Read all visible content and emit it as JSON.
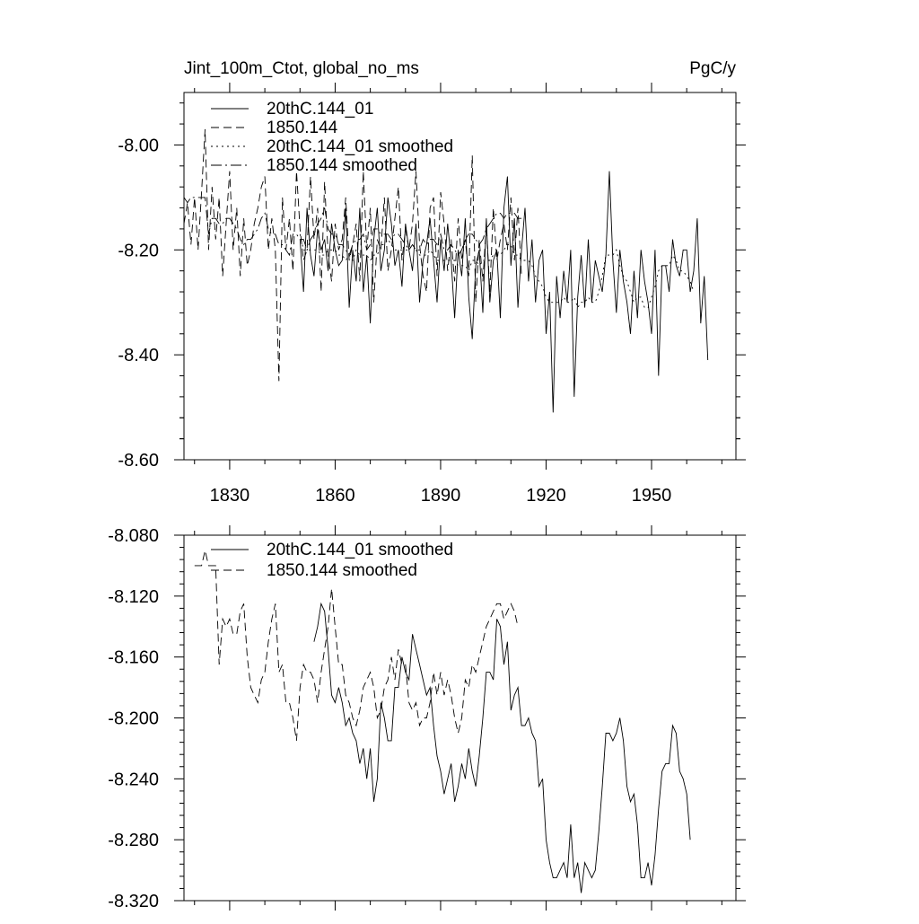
{
  "colors": {
    "line": "#000000",
    "background": "#ffffff"
  },
  "chart_data": [
    {
      "type": "line",
      "title_left": "Jint_100m_Ctot, global_no_ms",
      "title_right": "PgC/y",
      "xlim": [
        1817,
        1974
      ],
      "ylim": [
        -8.6,
        -7.9
      ],
      "x_ticks": [
        1830,
        1860,
        1890,
        1920,
        1950
      ],
      "x_tick_labels": [
        "1830",
        "1860",
        "1890",
        "1920",
        "1950"
      ],
      "y_ticks": [
        -8.0,
        -8.2,
        -8.4,
        -8.6
      ],
      "y_tick_labels": [
        "-8.00",
        "-8.20",
        "-8.40",
        "-8.60"
      ],
      "legend_position": "top-left",
      "series": [
        {
          "name": "20thC.144_01",
          "style": "solid",
          "x_start": 1850,
          "values": [
            -8.18,
            -8.28,
            -8.12,
            -8.21,
            -8.25,
            -8.16,
            -8.2,
            -8.18,
            -8.24,
            -8.15,
            -8.2,
            -8.23,
            -8.22,
            -8.12,
            -8.31,
            -8.2,
            -8.26,
            -8.12,
            -8.28,
            -8.21,
            -8.34,
            -8.18,
            -8.12,
            -8.24,
            -8.2,
            -8.1,
            -8.15,
            -8.23,
            -8.2,
            -8.27,
            -8.15,
            -8.2,
            -8.24,
            -8.15,
            -8.3,
            -8.22,
            -8.19,
            -8.14,
            -8.22,
            -8.3,
            -8.18,
            -8.24,
            -8.15,
            -8.22,
            -8.33,
            -8.2,
            -8.25,
            -8.14,
            -8.29,
            -8.37,
            -8.23,
            -8.2,
            -8.32,
            -8.14,
            -8.3,
            -8.22,
            -8.2,
            -8.33,
            -8.12,
            -8.06,
            -8.23,
            -8.14,
            -8.31,
            -8.2,
            -8.12,
            -8.26,
            -8.18,
            -8.3,
            -8.22,
            -8.2,
            -8.36,
            -8.28,
            -8.51,
            -8.25,
            -8.33,
            -8.24,
            -8.3,
            -8.2,
            -8.48,
            -8.29,
            -8.21,
            -8.31,
            -8.18,
            -8.3,
            -8.22,
            -8.25,
            -8.28,
            -8.21,
            -8.05,
            -8.22,
            -8.32,
            -8.2,
            -8.26,
            -8.3,
            -8.36,
            -8.24,
            -8.33,
            -8.2,
            -8.26,
            -8.3,
            -8.36,
            -8.2,
            -8.44,
            -8.23,
            -8.23,
            -8.28,
            -8.18,
            -8.23,
            -8.25,
            -8.2,
            -8.2,
            -8.28,
            -8.24,
            -8.14,
            -8.34,
            -8.25,
            -8.41
          ]
        },
        {
          "name": "1850.144",
          "style": "dashed",
          "x_start": 1817,
          "values": [
            -8.15,
            -8.11,
            -8.19,
            -8.1,
            -8.2,
            -8.09,
            -7.97,
            -8.2,
            -8.08,
            -8.18,
            -8.1,
            -8.25,
            -8.15,
            -8.05,
            -8.2,
            -8.12,
            -8.25,
            -8.14,
            -8.23,
            -8.2,
            -8.15,
            -8.12,
            -8.08,
            -8.06,
            -8.2,
            -8.14,
            -8.2,
            -8.45,
            -8.1,
            -8.2,
            -8.14,
            -8.24,
            -8.05,
            -8.16,
            -8.22,
            -8.2,
            -8.06,
            -8.18,
            -8.12,
            -8.28,
            -8.07,
            -8.21,
            -8.26,
            -8.15,
            -8.2,
            -8.18,
            -8.1,
            -8.22,
            -8.19,
            -8.15,
            -8.26,
            -8.05,
            -8.2,
            -8.12,
            -8.3,
            -8.18,
            -8.2,
            -8.1,
            -8.24,
            -8.2,
            -8.14,
            -8.08,
            -8.22,
            -8.16,
            -8.2,
            -8.15,
            -8.05,
            -8.19,
            -8.25,
            -8.28,
            -8.12,
            -8.1,
            -8.25,
            -8.09,
            -8.15,
            -8.24,
            -8.18,
            -8.26,
            -8.14,
            -8.22,
            -8.18,
            -8.25,
            -8.02,
            -8.3,
            -8.18,
            -8.26,
            -8.15,
            -8.28,
            -8.12,
            -8.22,
            -8.18,
            -8.15,
            -8.2,
            -8.1,
            -8.22,
            -8.12,
            -8.25
          ]
        },
        {
          "name": "20thC.144_01 smoothed",
          "style": "dotted",
          "x_start": 1850,
          "values": [
            -8.17,
            -8.2,
            -8.2,
            -8.2,
            -8.2,
            -8.2,
            -8.21,
            -8.21,
            -8.2,
            -8.2,
            -8.2,
            -8.21,
            -8.21,
            -8.22,
            -8.21,
            -8.22,
            -8.2,
            -8.21,
            -8.21,
            -8.21,
            -8.22,
            -8.21,
            -8.21,
            -8.19,
            -8.19,
            -8.18,
            -8.19,
            -8.2,
            -8.2,
            -8.2,
            -8.2,
            -8.2,
            -8.19,
            -8.2,
            -8.21,
            -8.21,
            -8.21,
            -8.2,
            -8.21,
            -8.22,
            -8.22,
            -8.22,
            -8.22,
            -8.22,
            -8.22,
            -8.23,
            -8.23,
            -8.23,
            -8.24,
            -8.22,
            -8.22,
            -8.23,
            -8.22,
            -8.22,
            -8.22,
            -8.21,
            -8.21,
            -8.21,
            -8.2,
            -8.19,
            -8.19,
            -8.21,
            -8.21,
            -8.22,
            -8.22,
            -8.22,
            -8.23,
            -8.25,
            -8.26,
            -8.27,
            -8.29,
            -8.3,
            -8.3,
            -8.3,
            -8.3,
            -8.29,
            -8.3,
            -8.3,
            -8.29,
            -8.31,
            -8.3,
            -8.3,
            -8.29,
            -8.3,
            -8.3,
            -8.28,
            -8.25,
            -8.21,
            -8.21,
            -8.21,
            -8.2,
            -8.23,
            -8.25,
            -8.26,
            -8.28,
            -8.3,
            -8.29,
            -8.29,
            -8.31,
            -8.31,
            -8.29,
            -8.27,
            -8.24,
            -8.23,
            -8.23,
            -8.23,
            -8.21,
            -8.22,
            -8.24,
            -8.24,
            -8.25,
            -8.26,
            -8.28
          ]
        },
        {
          "name": "1850.144 smoothed",
          "style": "dashdot",
          "x_start": 1817,
          "values": [
            -8.1,
            -8.11,
            -8.1,
            -8.1,
            -8.1,
            -8.1,
            -8.1,
            -8.17,
            -8.14,
            -8.14,
            -8.15,
            -8.15,
            -8.14,
            -8.14,
            -8.15,
            -8.16,
            -8.18,
            -8.19,
            -8.18,
            -8.18,
            -8.17,
            -8.16,
            -8.14,
            -8.13,
            -8.16,
            -8.17,
            -8.17,
            -8.19,
            -8.19,
            -8.2,
            -8.21,
            -8.17,
            -8.17,
            -8.18,
            -8.18,
            -8.2,
            -8.18,
            -8.17,
            -8.15,
            -8.14,
            -8.12,
            -8.16,
            -8.17,
            -8.17,
            -8.19,
            -8.19,
            -8.2,
            -8.21,
            -8.19,
            -8.18,
            -8.18,
            -8.17,
            -8.2,
            -8.19,
            -8.16,
            -8.16,
            -8.17,
            -8.17,
            -8.17,
            -8.18,
            -8.17,
            -8.17,
            -8.18,
            -8.19,
            -8.2,
            -8.19,
            -8.2,
            -8.2,
            -8.18,
            -8.19,
            -8.18,
            -8.18,
            -8.19,
            -8.17,
            -8.2,
            -8.2,
            -8.19,
            -8.2,
            -8.21,
            -8.2,
            -8.18,
            -8.17,
            -8.17,
            -8.18,
            -8.19,
            -8.18,
            -8.16,
            -8.15,
            -8.14,
            -8.13,
            -8.13,
            -8.14,
            -8.13,
            -8.13,
            -8.13,
            -8.14,
            -8.14
          ]
        }
      ]
    },
    {
      "type": "line",
      "xlim": [
        1817,
        1974
      ],
      "ylim": [
        -8.32,
        -8.08
      ],
      "x_ticks": [
        1830,
        1860,
        1890,
        1920,
        1950
      ],
      "y_ticks": [
        -8.08,
        -8.12,
        -8.16,
        -8.2,
        -8.24,
        -8.28,
        -8.32
      ],
      "y_tick_labels": [
        "-8.080",
        "-8.120",
        "-8.160",
        "-8.200",
        "-8.240",
        "-8.280",
        "-8.320"
      ],
      "legend_position": "top-left",
      "series": [
        {
          "name": "20thC.144_01 smoothed",
          "style": "solid",
          "x_start": 1854,
          "values": [
            -8.15,
            -8.14,
            -8.125,
            -8.13,
            -8.155,
            -8.185,
            -8.19,
            -8.18,
            -8.19,
            -8.205,
            -8.2,
            -8.21,
            -8.215,
            -8.23,
            -8.22,
            -8.24,
            -8.22,
            -8.255,
            -8.24,
            -8.19,
            -8.2,
            -8.215,
            -8.215,
            -8.18,
            -8.18,
            -8.16,
            -8.17,
            -8.175,
            -8.145,
            -8.155,
            -8.165,
            -8.175,
            -8.185,
            -8.18,
            -8.205,
            -8.225,
            -8.235,
            -8.25,
            -8.24,
            -8.23,
            -8.255,
            -8.245,
            -8.23,
            -8.24,
            -8.22,
            -8.235,
            -8.245,
            -8.225,
            -8.2,
            -8.17,
            -8.17,
            -8.175,
            -8.135,
            -8.14,
            -8.165,
            -8.15,
            -8.195,
            -8.185,
            -8.18,
            -8.205,
            -8.205,
            -8.2,
            -8.21,
            -8.215,
            -8.245,
            -8.24,
            -8.28,
            -8.295,
            -8.305,
            -8.305,
            -8.3,
            -8.295,
            -8.305,
            -8.27,
            -8.305,
            -8.295,
            -8.315,
            -8.295,
            -8.3,
            -8.305,
            -8.3,
            -8.275,
            -8.245,
            -8.21,
            -8.21,
            -8.215,
            -8.21,
            -8.2,
            -8.215,
            -8.245,
            -8.255,
            -8.25,
            -8.27,
            -8.305,
            -8.305,
            -8.295,
            -8.31,
            -8.29,
            -8.26,
            -8.235,
            -8.23,
            -8.23,
            -8.205,
            -8.21,
            -8.235,
            -8.24,
            -8.25,
            -8.28
          ]
        },
        {
          "name": "1850.144 smoothed",
          "style": "dashed",
          "x_start": 1820,
          "values": [
            -8.1,
            -8.1,
            -8.1,
            -8.09,
            -8.1,
            -8.1,
            -8.1,
            -8.165,
            -8.135,
            -8.14,
            -8.135,
            -8.145,
            -8.145,
            -8.13,
            -8.125,
            -8.16,
            -8.18,
            -8.185,
            -8.19,
            -8.175,
            -8.17,
            -8.15,
            -8.135,
            -8.125,
            -8.17,
            -8.165,
            -8.19,
            -8.19,
            -8.2,
            -8.215,
            -8.18,
            -8.165,
            -8.17,
            -8.17,
            -8.175,
            -8.19,
            -8.17,
            -8.155,
            -8.14,
            -8.115,
            -8.14,
            -8.165,
            -8.165,
            -8.185,
            -8.19,
            -8.2,
            -8.205,
            -8.195,
            -8.18,
            -8.175,
            -8.17,
            -8.18,
            -8.2,
            -8.195,
            -8.18,
            -8.175,
            -8.16,
            -8.175,
            -8.155,
            -8.165,
            -8.165,
            -8.19,
            -8.195,
            -8.19,
            -8.205,
            -8.2,
            -8.2,
            -8.19,
            -8.17,
            -8.185,
            -8.17,
            -8.185,
            -8.175,
            -8.185,
            -8.2,
            -8.21,
            -8.2,
            -8.175,
            -8.18,
            -8.165,
            -8.17,
            -8.16,
            -8.15,
            -8.14,
            -8.135,
            -8.13,
            -8.125,
            -8.125,
            -8.135,
            -8.13,
            -8.125,
            -8.13,
            -8.14
          ]
        }
      ]
    }
  ]
}
